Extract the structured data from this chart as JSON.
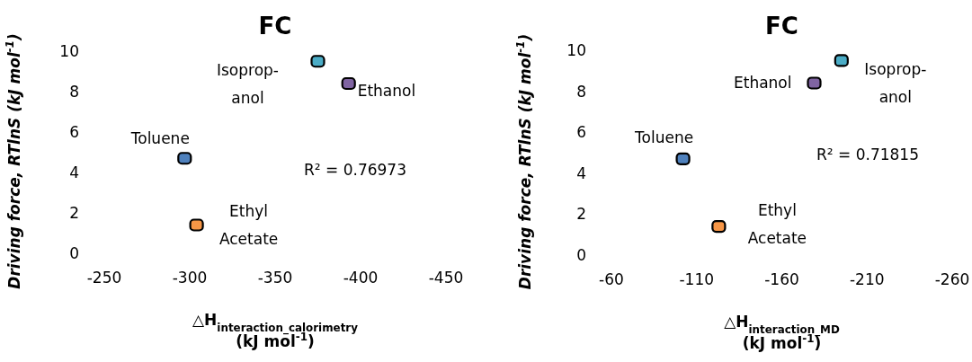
{
  "chart_data": [
    {
      "type": "scatter",
      "title": "FC",
      "xlabel": "△H$_{interaction_calorimetry}$\n(kJ mol$^{-1}$)",
      "ylabel": "Driving force, RTlnS (kJ mol$^{-1}$)",
      "xlim": [
        -250,
        -450
      ],
      "xticks": [
        -250,
        -300,
        -350,
        -400,
        -450
      ],
      "ylim": [
        0,
        10
      ],
      "yticks": [
        0,
        2,
        4,
        6,
        8,
        10
      ],
      "grid": false,
      "marker": "square",
      "annotations": [
        "R² = 0.76973"
      ],
      "series": [
        {
          "name": "Isoprop-\nanol",
          "color": "#4bacc6",
          "x": [
            -375
          ],
          "values": [
            9.5
          ]
        },
        {
          "name": "Ethanol",
          "color": "#8064a2",
          "x": [
            -393
          ],
          "values": [
            8.4
          ]
        },
        {
          "name": "Toluene",
          "color": "#4f81bd",
          "x": [
            -297
          ],
          "values": [
            4.7
          ]
        },
        {
          "name": "Ethyl\nAcetate",
          "color": "#f79646",
          "x": [
            -304
          ],
          "values": [
            1.4
          ]
        }
      ]
    },
    {
      "type": "scatter",
      "title": "FC",
      "xlabel": "△H$_{interaction_MD}$\n(kJ mol$^{-1}$)",
      "ylabel": "Driving force, RTlnS (kJ mol$^{-1}$)",
      "xlim": [
        -60,
        -260
      ],
      "xticks": [
        -60,
        -110,
        -160,
        -210,
        -260
      ],
      "ylim": [
        0,
        10
      ],
      "yticks": [
        0,
        2,
        4,
        6,
        8,
        10
      ],
      "grid": false,
      "marker": "square",
      "annotations": [
        "R² = 0.71815"
      ],
      "series": [
        {
          "name": "Isoprop-\nanol",
          "color": "#4bacc6",
          "x": [
            -195
          ],
          "values": [
            9.5
          ]
        },
        {
          "name": "Ethanol",
          "color": "#8064a2",
          "x": [
            -179
          ],
          "values": [
            8.4
          ]
        },
        {
          "name": "Toluene",
          "color": "#4f81bd",
          "x": [
            -102
          ],
          "values": [
            4.7
          ]
        },
        {
          "name": "Ethyl\nAcetate",
          "color": "#f79646",
          "x": [
            -123
          ],
          "values": [
            1.4
          ]
        }
      ]
    }
  ]
}
